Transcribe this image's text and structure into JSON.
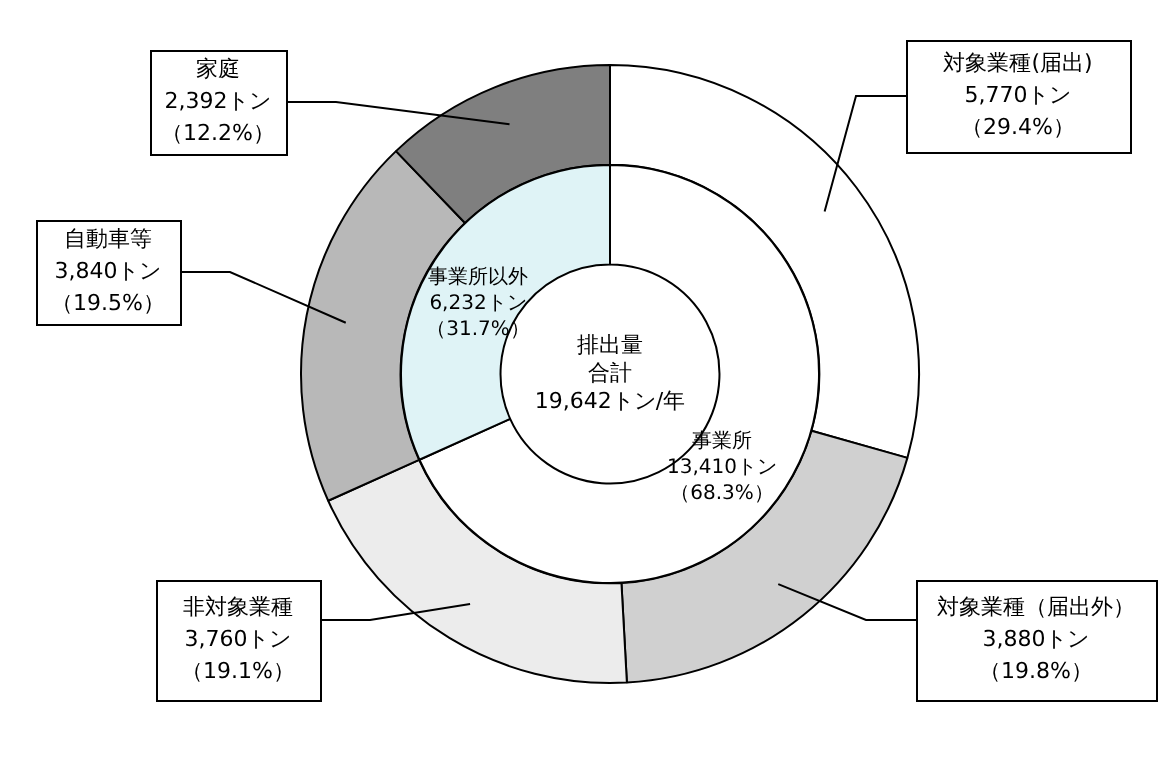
{
  "chart_data": [
    {
      "type": "donut",
      "categories": [
        "対象業種(届出)",
        "対象業種（届出外）",
        "非対象業種",
        "自動車等",
        "家庭"
      ],
      "values": [
        5770,
        3880,
        3760,
        3840,
        2392
      ],
      "colors": [
        "#ffffff",
        "#d0d0d0",
        "#ececec",
        "#b8b8b8",
        "#7f7f7f"
      ],
      "value_labels": [
        "5,770トン（29.4%）",
        "3,880トン（19.8%）",
        "3,760トン（19.1%）",
        "3,840トン（19.5%）",
        "2,392トン（12.2%）"
      ]
    },
    {
      "type": "donut",
      "categories": [
        "事業所",
        "事業所以外"
      ],
      "values": [
        13410,
        6232
      ],
      "colors": [
        "#ffffff",
        "#dff3f6"
      ],
      "value_labels": [
        "13,410トン（68.3%）",
        "6,232トン（31.7%）"
      ],
      "annotations": [
        "排出量合計",
        "19,642トン/年"
      ]
    }
  ]
}
